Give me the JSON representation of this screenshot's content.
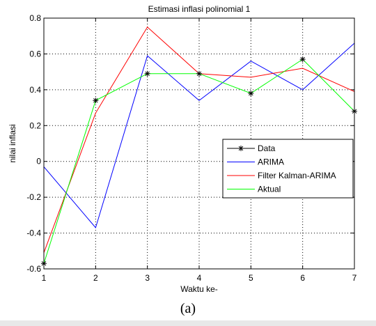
{
  "figure_caption": "(a)",
  "chart_data": {
    "type": "line",
    "title": "Estimasi inflasi polinomial 1",
    "xlabel": "Waktu ke-",
    "ylabel": "nilai inflasi",
    "xlim": [
      1,
      7
    ],
    "ylim": [
      -0.6,
      0.8
    ],
    "xticks": [
      1,
      2,
      3,
      4,
      5,
      6,
      7
    ],
    "xtick_labels": [
      "1",
      "2",
      "3",
      "4",
      "5",
      "6",
      "7"
    ],
    "yticks": [
      -0.6,
      -0.4,
      -0.2,
      0,
      0.2,
      0.4,
      0.6,
      0.8
    ],
    "ytick_labels": [
      "-0.6",
      "-0.4",
      "-0.2",
      "0",
      "0.2",
      "0.4",
      "0.6",
      "0.8"
    ],
    "grid": true,
    "legend_position": "right",
    "x": [
      1,
      2,
      3,
      4,
      5,
      6,
      7
    ],
    "series": [
      {
        "name": "Data",
        "color": "#000000",
        "marker": "asterisk",
        "line": false,
        "values": [
          -0.57,
          0.34,
          0.49,
          0.49,
          0.38,
          0.57,
          0.28
        ]
      },
      {
        "name": "ARIMA",
        "color": "#0000ff",
        "marker": "none",
        "line": true,
        "values": [
          -0.03,
          -0.37,
          0.59,
          0.34,
          0.56,
          0.4,
          0.66
        ]
      },
      {
        "name": "Filter Kalman-ARIMA",
        "color": "#ff0000",
        "marker": "none",
        "line": true,
        "values": [
          -0.51,
          0.27,
          0.75,
          0.49,
          0.47,
          0.52,
          0.39
        ]
      },
      {
        "name": "Aktual",
        "color": "#00ff00",
        "marker": "none",
        "line": true,
        "values": [
          -0.57,
          0.34,
          0.49,
          0.49,
          0.38,
          0.57,
          0.28
        ]
      }
    ]
  }
}
